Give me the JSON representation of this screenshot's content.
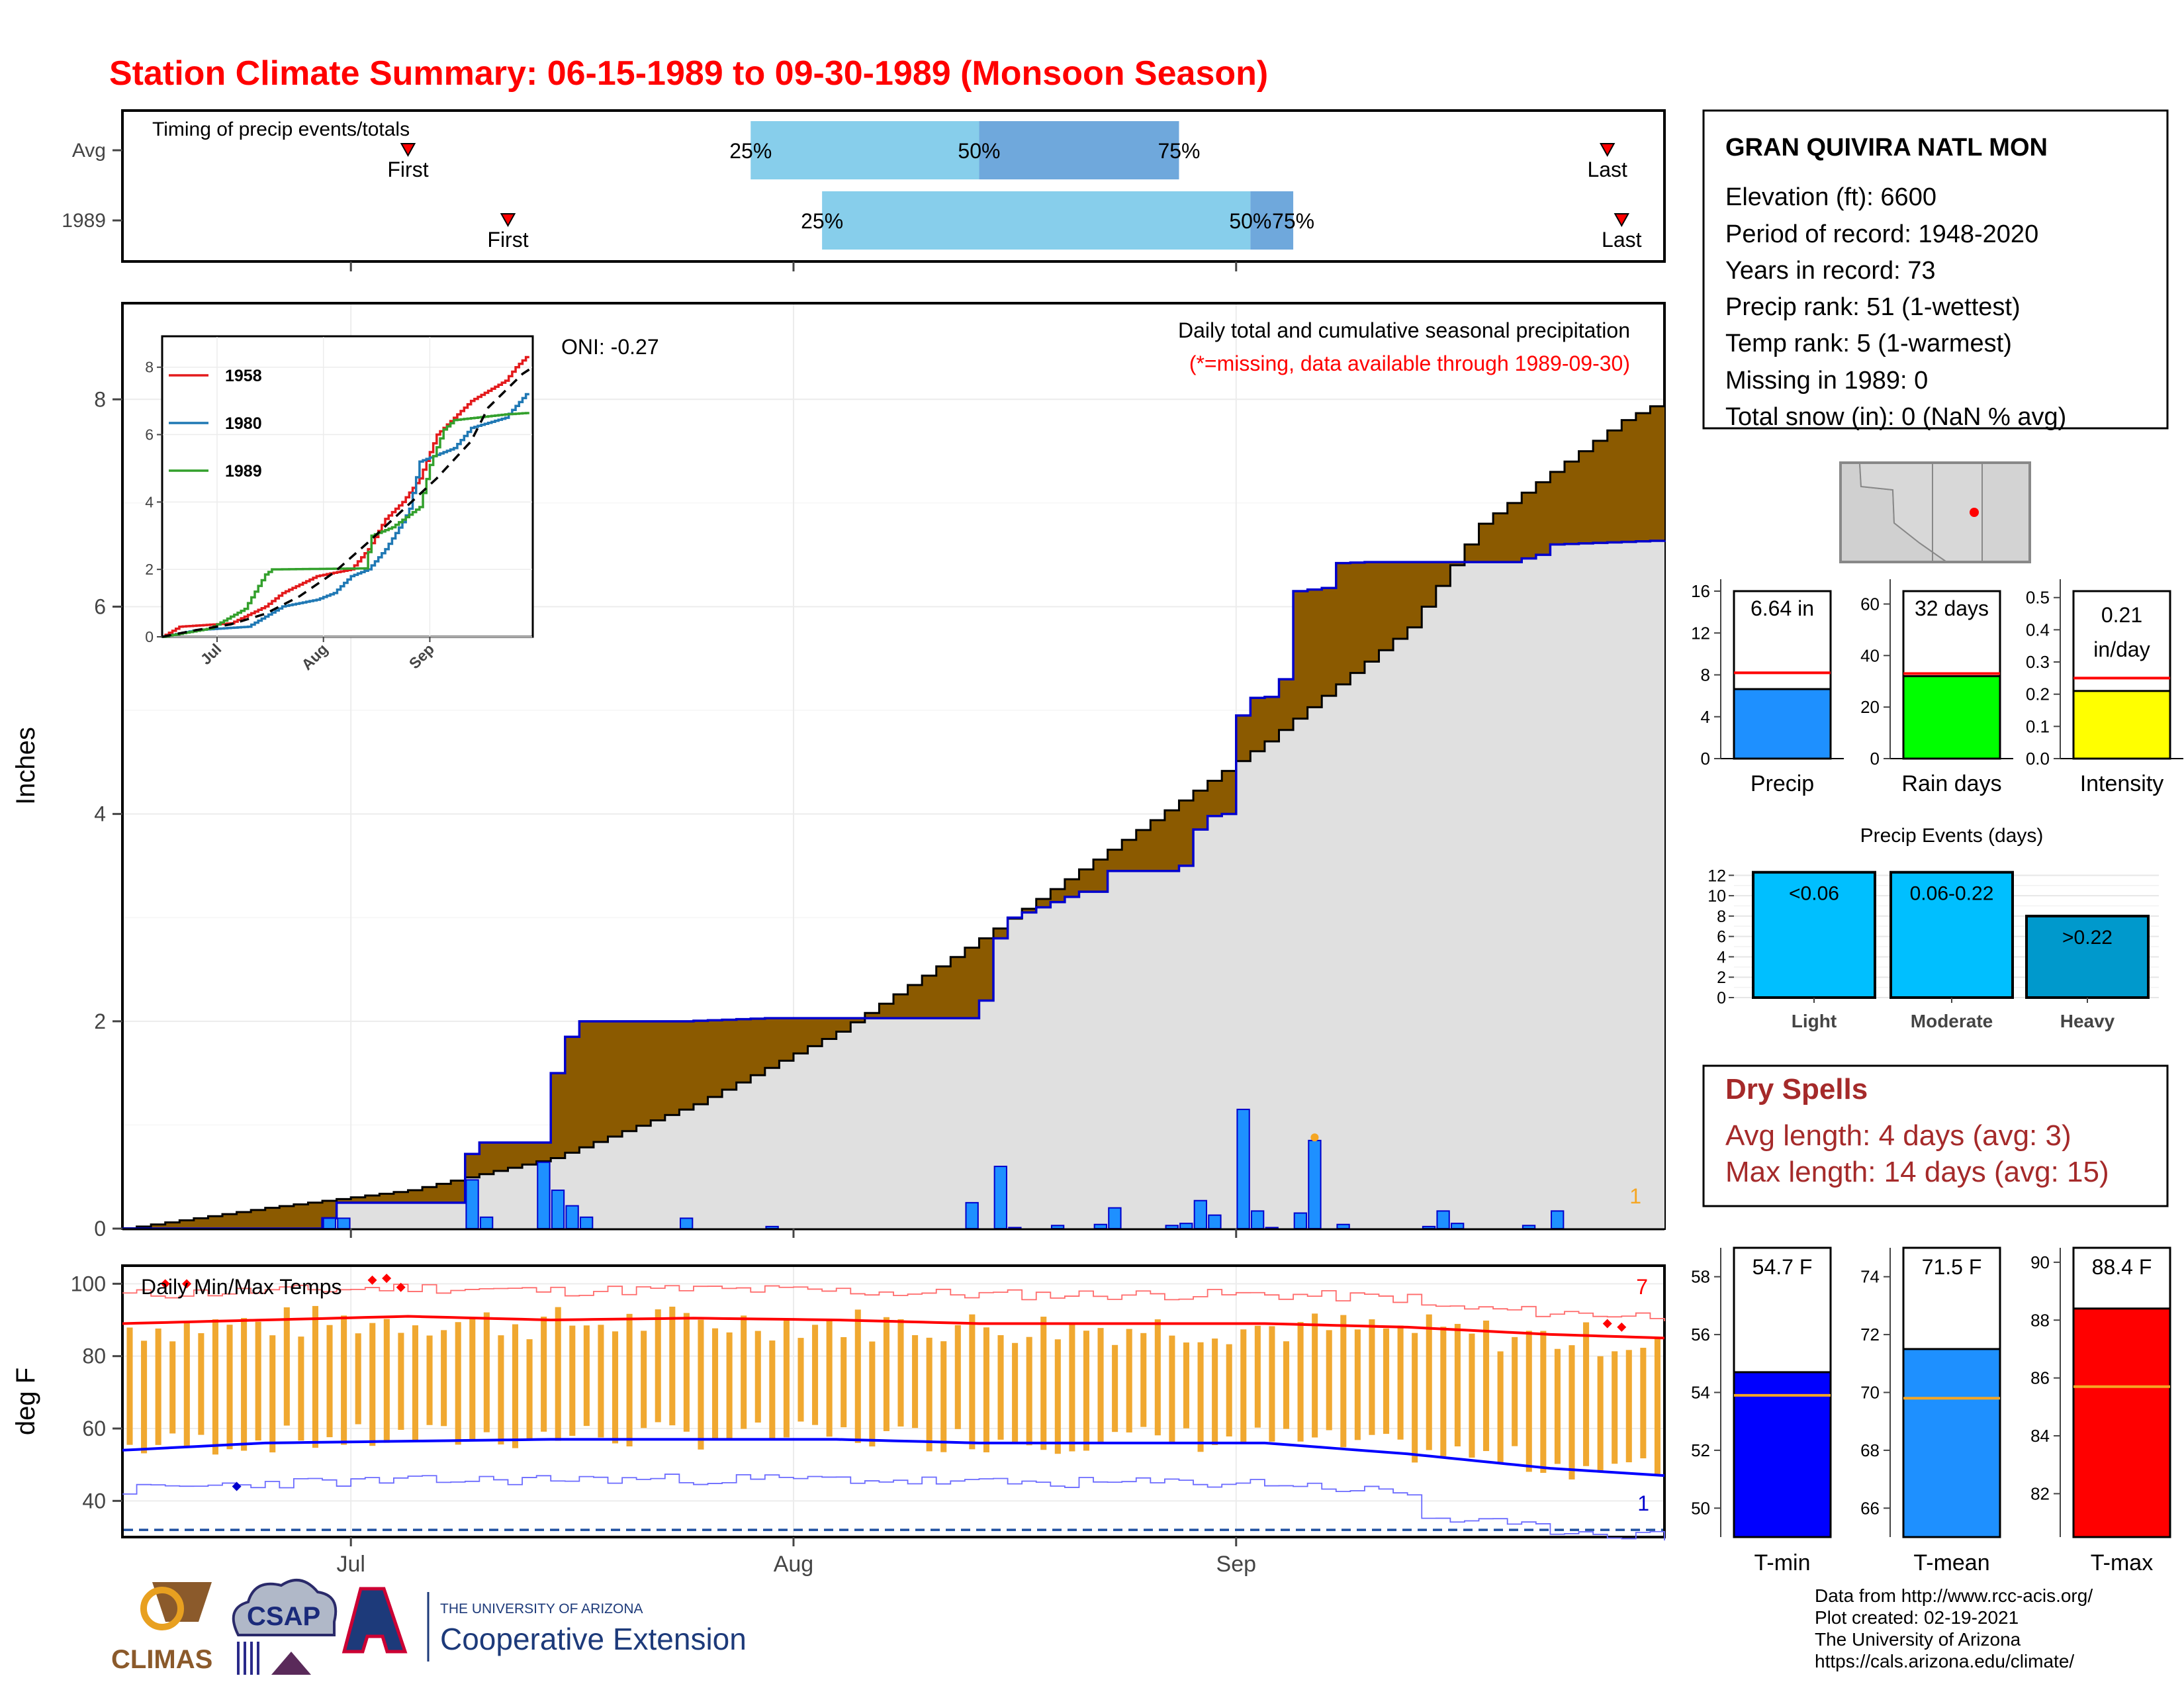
{
  "title": "Station Climate Summary: 06-15-1989 to 09-30-1989 (Monsoon Season)",
  "colors": {
    "title": "#ff0000",
    "brown": "#8b5a00",
    "grey_fill": "#e0e0e0",
    "blue": "#0000cd",
    "bar_blue": "#1e90ff",
    "orange": "#f5a623",
    "red": "#ff0000",
    "light_blue": "#87ceeb",
    "mid_blue": "#6fa8dc",
    "dry_spells": "#a52a2a"
  },
  "timing": {
    "label": "Timing of precip events/totals",
    "rows": [
      {
        "name": "Avg",
        "first": "First",
        "last": "Last",
        "q25": "25%",
        "q50": "50%",
        "q75": "75%",
        "first_day": 20,
        "last_day": 104,
        "p25": 44,
        "p50": 60,
        "p75": 74
      },
      {
        "name": "1989",
        "first": "First",
        "last": "Last",
        "q25": "25%",
        "q50": "50%",
        "q75": "75%",
        "first_day": 27,
        "last_day": 105,
        "p25": 49,
        "p50": 79,
        "p75": 82
      }
    ]
  },
  "station": {
    "name": "GRAN QUIVIRA NATL MON",
    "lines": [
      "Elevation (ft): 6600",
      "Period of record: 1948-2020",
      "Years in record: 73",
      "Precip rank: 51 (1-wettest)",
      "Temp rank: 5 (1-warmest)",
      "Missing in 1989: 0",
      "Total snow (in): 0 (NaN % avg)"
    ]
  },
  "precip_panel": {
    "ylabel": "Inches",
    "note_title": "Daily total and cumulative seasonal precipitation",
    "note_missing": "(*=missing, data available through 1989-09-30)",
    "oni": "ONI: -0.27",
    "corner_count": "1",
    "yticks": [
      "0",
      "2",
      "4",
      "6",
      "8"
    ]
  },
  "inset": {
    "yticks": [
      "0",
      "2",
      "4",
      "6",
      "8"
    ],
    "xticks": [
      "Jul",
      "Aug",
      "Sep"
    ],
    "legend": [
      {
        "name": "1958",
        "color": "#e31a1c"
      },
      {
        "name": "1980",
        "color": "#1f78b4"
      },
      {
        "name": "1989",
        "color": "#33a02c"
      }
    ]
  },
  "temp_panel": {
    "label": "Daily Min/Max Temps",
    "ylabel": "deg F",
    "yticks": [
      "40",
      "60",
      "80",
      "100"
    ],
    "record_high_count": "7",
    "record_low_count": "1",
    "xticks": [
      "Jul",
      "Aug",
      "Sep"
    ]
  },
  "summary_bars": [
    {
      "name": "Precip",
      "label": "6.64 in",
      "ticks": [
        "0",
        "4",
        "8",
        "12",
        "16"
      ],
      "min": 0,
      "max": 16,
      "value": 6.64,
      "avg": 8.2,
      "color": "#1e90ff"
    },
    {
      "name": "Rain days",
      "label": "32 days",
      "ticks": [
        "0",
        "20",
        "40",
        "60"
      ],
      "min": 0,
      "max": 65,
      "value": 32,
      "avg": 33,
      "color": "#00ff00"
    },
    {
      "name": "Intensity",
      "label": "0.21",
      "label2": "in/day",
      "ticks": [
        "0.0",
        "0.1",
        "0.2",
        "0.3",
        "0.4",
        "0.5"
      ],
      "min": 0,
      "max": 0.52,
      "value": 0.21,
      "avg": 0.25,
      "color": "#ffff00"
    }
  ],
  "events": {
    "title": "Precip Events (days)",
    "ticks": [
      "0",
      "2",
      "4",
      "6",
      "8",
      "10",
      "12"
    ],
    "bars": [
      {
        "name": "Light",
        "label": "<0.06",
        "value": 12.3,
        "color": "#00bfff"
      },
      {
        "name": "Moderate",
        "label": "0.06-0.22",
        "value": 12.3,
        "color": "#00bfff"
      },
      {
        "name": "Heavy",
        "label": ">0.22",
        "value": 8,
        "color": "#0099cc"
      }
    ]
  },
  "dry_spells": {
    "title": "Dry Spells",
    "avg": "Avg length: 4 days (avg: 3)",
    "max": "Max length: 14 days (avg: 15)"
  },
  "temp_bars": [
    {
      "name": "T-min",
      "label": "54.7 F",
      "ticks": [
        "50",
        "52",
        "54",
        "56",
        "58"
      ],
      "min": 49,
      "max": 59,
      "value": 54.7,
      "avg": 53.9,
      "color": "#0000ff"
    },
    {
      "name": "T-mean",
      "label": "71.5 F",
      "ticks": [
        "66",
        "68",
        "70",
        "72",
        "74"
      ],
      "min": 65,
      "max": 75,
      "value": 71.5,
      "avg": 69.8,
      "color": "#1e90ff"
    },
    {
      "name": "T-max",
      "label": "88.4 F",
      "ticks": [
        "82",
        "84",
        "86",
        "88",
        "90"
      ],
      "min": 80.5,
      "max": 90.5,
      "value": 88.4,
      "avg": 85.7,
      "color": "#ff0000"
    }
  ],
  "footer": {
    "lines": [
      "Data from http://www.rcc-acis.org/",
      "Plot created: 02-19-2021",
      "The University of Arizona",
      "https://cals.arizona.edu/climate/"
    ],
    "climas": "CLIMAS",
    "csap": "CSAP",
    "ua_small": "THE UNIVERSITY OF ARIZONA",
    "ua_big": "Cooperative Extension"
  },
  "chart_data": [
    {
      "type": "area",
      "title": "Daily total and cumulative seasonal precipitation",
      "ylabel": "Inches",
      "x_start": "06-15-1989",
      "x_end": "09-30-1989",
      "ylim": [
        0,
        8.8
      ],
      "series": [
        {
          "name": "",
          "points": [
            [
              0,
              0
            ],
            [
              10,
              0.2
            ],
            [
              20,
              0.37
            ],
            [
              30,
              0.68
            ],
            [
              40,
              1.2
            ],
            [
              50,
              1.9
            ],
            [
              60,
              2.8
            ],
            [
              70,
              3.75
            ],
            [
              80,
              4.7
            ],
            [
              90,
              5.8
            ],
            [
              95,
              6.8
            ],
            [
              100,
              7.3
            ],
            [
              105,
              7.8
            ],
            [
              108,
              8.0
            ]
          ]
        },
        {
          "name": "",
          "points": [
            [
              0,
              0
            ],
            [
              13,
              0
            ],
            [
              14,
              0.1
            ],
            [
              15,
              0.25
            ],
            [
              20,
              0.25
            ],
            [
              23,
              0.25
            ],
            [
              24,
              0.72
            ],
            [
              25,
              0.83
            ],
            [
              29,
              0.83
            ],
            [
              30,
              1.5
            ],
            [
              31,
              1.85
            ],
            [
              32,
              2.0
            ],
            [
              38,
              2.0
            ],
            [
              39,
              2.0
            ],
            [
              45,
              2.03
            ],
            [
              46,
              2.03
            ],
            [
              52,
              2.03
            ],
            [
              59,
              2.03
            ],
            [
              60,
              2.2
            ],
            [
              61,
              2.8
            ],
            [
              61.5,
              2.8
            ],
            [
              62,
              3.0
            ],
            [
              63,
              3.05
            ],
            [
              67,
              3.25
            ],
            [
              68,
              3.25
            ],
            [
              69,
              3.45
            ],
            [
              70,
              3.45
            ],
            [
              73,
              3.45
            ],
            [
              74,
              3.5
            ],
            [
              75,
              3.85
            ],
            [
              76,
              3.98
            ],
            [
              77,
              4.0
            ],
            [
              78,
              4.95
            ],
            [
              79,
              5.12
            ],
            [
              80,
              5.13
            ],
            [
              81,
              5.3
            ],
            [
              82,
              6.15
            ],
            [
              84,
              6.18
            ],
            [
              85,
              6.42
            ],
            [
              87,
              6.43
            ],
            [
              93,
              6.43
            ],
            [
              97,
              6.43
            ],
            [
              99,
              6.5
            ],
            [
              100,
              6.6
            ],
            [
              108,
              6.64
            ]
          ]
        }
      ],
      "daily_bars": [
        [
          14,
          0.1
        ],
        [
          15,
          0.1
        ],
        [
          24,
          0.47
        ],
        [
          25,
          0.11
        ],
        [
          29,
          0.64
        ],
        [
          30,
          0.37
        ],
        [
          31,
          0.22
        ],
        [
          32,
          0.11
        ],
        [
          39,
          0.1
        ],
        [
          45,
          0.02
        ],
        [
          59,
          0.25
        ],
        [
          61,
          0.6
        ],
        [
          62,
          0.01
        ],
        [
          65,
          0.03
        ],
        [
          68,
          0.04
        ],
        [
          69,
          0.2
        ],
        [
          73,
          0.03
        ],
        [
          74,
          0.05
        ],
        [
          75,
          0.27
        ],
        [
          76,
          0.13
        ],
        [
          78,
          1.15
        ],
        [
          79,
          0.17
        ],
        [
          80,
          0.01
        ],
        [
          82,
          0.15
        ],
        [
          83,
          0.85
        ],
        [
          85,
          0.04
        ],
        [
          91,
          0.02
        ],
        [
          92,
          0.17
        ],
        [
          93,
          0.05
        ],
        [
          98,
          0.03
        ],
        [
          100,
          0.17
        ]
      ]
    },
    {
      "type": "line",
      "title": "",
      "xticks": [
        "Jul",
        "Aug",
        "Sep"
      ],
      "ylim": [
        0,
        8.8
      ],
      "series": [
        {
          "name": "1958",
          "points": [
            [
              0,
              0
            ],
            [
              5,
              0.3
            ],
            [
              20,
              0.4
            ],
            [
              30,
              0.9
            ],
            [
              35,
              1.3
            ],
            [
              45,
              1.8
            ],
            [
              55,
              2.0
            ],
            [
              60,
              2.6
            ],
            [
              65,
              3.5
            ],
            [
              70,
              4.0
            ],
            [
              75,
              4.7
            ],
            [
              80,
              6.0
            ],
            [
              85,
              6.5
            ],
            [
              90,
              7.0
            ],
            [
              100,
              7.6
            ],
            [
              103,
              8.0
            ],
            [
              106,
              8.3
            ]
          ]
        },
        {
          "name": "1980",
          "points": [
            [
              0,
              0
            ],
            [
              10,
              0.2
            ],
            [
              25,
              0.3
            ],
            [
              35,
              0.9
            ],
            [
              45,
              1.1
            ],
            [
              50,
              1.3
            ],
            [
              55,
              1.8
            ],
            [
              60,
              2.0
            ],
            [
              65,
              2.6
            ],
            [
              70,
              3.4
            ],
            [
              72,
              3.8
            ],
            [
              75,
              5.2
            ],
            [
              80,
              5.4
            ],
            [
              85,
              5.6
            ],
            [
              90,
              6.2
            ],
            [
              100,
              6.5
            ],
            [
              106,
              7.2
            ]
          ]
        },
        {
          "name": "1989",
          "points": [
            [
              0,
              0
            ],
            [
              14,
              0.25
            ],
            [
              24,
              0.83
            ],
            [
              30,
              1.85
            ],
            [
              32,
              2.0
            ],
            [
              59,
              2.03
            ],
            [
              61,
              3.0
            ],
            [
              67,
              3.25
            ],
            [
              75,
              3.85
            ],
            [
              78,
              5.1
            ],
            [
              82,
              6.15
            ],
            [
              85,
              6.43
            ],
            [
              100,
              6.6
            ],
            [
              106,
              6.64
            ]
          ]
        },
        {
          "name": "",
          "points": [
            [
              0,
              0
            ],
            [
              10,
              0.2
            ],
            [
              20,
              0.37
            ],
            [
              30,
              0.68
            ],
            [
              40,
              1.2
            ],
            [
              50,
              1.9
            ],
            [
              60,
              2.8
            ],
            [
              70,
              3.75
            ],
            [
              80,
              4.7
            ],
            [
              90,
              5.8
            ],
            [
              95,
              6.8
            ],
            [
              100,
              7.3
            ],
            [
              105,
              7.8
            ],
            [
              108,
              8.0
            ]
          ]
        }
      ]
    },
    {
      "type": "bar",
      "title": "Daily Min/Max Temps",
      "ylabel": "deg F",
      "ylim": [
        30,
        105
      ],
      "x_start": "06-15-1989",
      "x_end": "09-30-1989",
      "series": [
        {
          "name": "",
          "points": [
            [
              0,
              89
            ],
            [
              10,
              90
            ],
            [
              20,
              91
            ],
            [
              30,
              90
            ],
            [
              40,
              90.5
            ],
            [
              50,
              90
            ],
            [
              60,
              89
            ],
            [
              70,
              89
            ],
            [
              80,
              89
            ],
            [
              90,
              88
            ],
            [
              100,
              86
            ],
            [
              108,
              85
            ]
          ]
        },
        {
          "name": "",
          "points": [
            [
              0,
              54
            ],
            [
              10,
              56
            ],
            [
              20,
              56.5
            ],
            [
              30,
              57
            ],
            [
              40,
              57
            ],
            [
              50,
              57
            ],
            [
              60,
              56
            ],
            [
              70,
              56
            ],
            [
              80,
              56
            ],
            [
              90,
              53
            ],
            [
              100,
              49
            ],
            [
              108,
              47
            ]
          ]
        }
      ]
    }
  ]
}
